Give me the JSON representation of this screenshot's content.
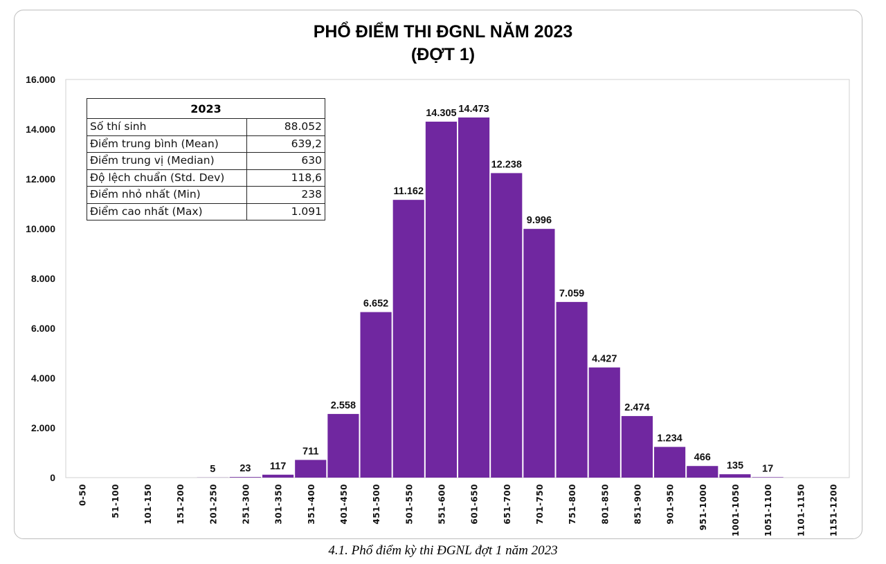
{
  "chart_data": {
    "type": "bar",
    "title": "PHỔ ĐIỂM THI ĐGNL NĂM 2023",
    "subtitle": "(ĐỢT 1)",
    "categories": [
      "0-50",
      "51-100",
      "101-150",
      "151-200",
      "201-250",
      "251-300",
      "301-350",
      "351-400",
      "401-450",
      "451-500",
      "501-550",
      "551-600",
      "601-650",
      "651-700",
      "701-750",
      "751-800",
      "801-850",
      "851-900",
      "901-950",
      "951-1000",
      "1001-1050",
      "1051-1100",
      "1101-1150",
      "1151-1200"
    ],
    "values": [
      null,
      null,
      null,
      null,
      5,
      23,
      117,
      711,
      2558,
      6652,
      11162,
      14305,
      14473,
      12238,
      9996,
      7059,
      4427,
      2474,
      1234,
      466,
      135,
      17,
      null,
      null
    ],
    "data_labels": [
      "",
      "",
      "",
      "",
      "5",
      "23",
      "117",
      "711",
      "2.558",
      "6.652",
      "11.162",
      "14.305",
      "14.473",
      "12.238",
      "9.996",
      "7.059",
      "4.427",
      "2.474",
      "1.234",
      "466",
      "135",
      "17",
      "",
      ""
    ],
    "ylim": [
      0,
      16000
    ],
    "yticks": [
      0,
      2000,
      4000,
      6000,
      8000,
      10000,
      12000,
      14000,
      16000
    ],
    "ytick_labels": [
      "0",
      "2.000",
      "4.000",
      "6.000",
      "8.000",
      "10.000",
      "12.000",
      "14.000",
      "16.000"
    ],
    "bar_color": "#7027a0",
    "grid": false,
    "xlabel": "",
    "ylabel": ""
  },
  "stats_table": {
    "header": "2023",
    "rows": [
      {
        "label": "Số thí sinh",
        "value": "88.052"
      },
      {
        "label": "Điểm trung bình (Mean)",
        "value": "639,2"
      },
      {
        "label": "Điểm trung vị (Median)",
        "value": "630"
      },
      {
        "label": "Độ lệch chuẩn (Std. Dev)",
        "value": "118,6"
      },
      {
        "label": "Điểm nhỏ nhất (Min)",
        "value": "238"
      },
      {
        "label": "Điểm cao nhất (Max)",
        "value": "1.091"
      }
    ]
  },
  "caption": "4.1. Phổ điểm kỳ thi ĐGNL đợt 1 năm 2023"
}
